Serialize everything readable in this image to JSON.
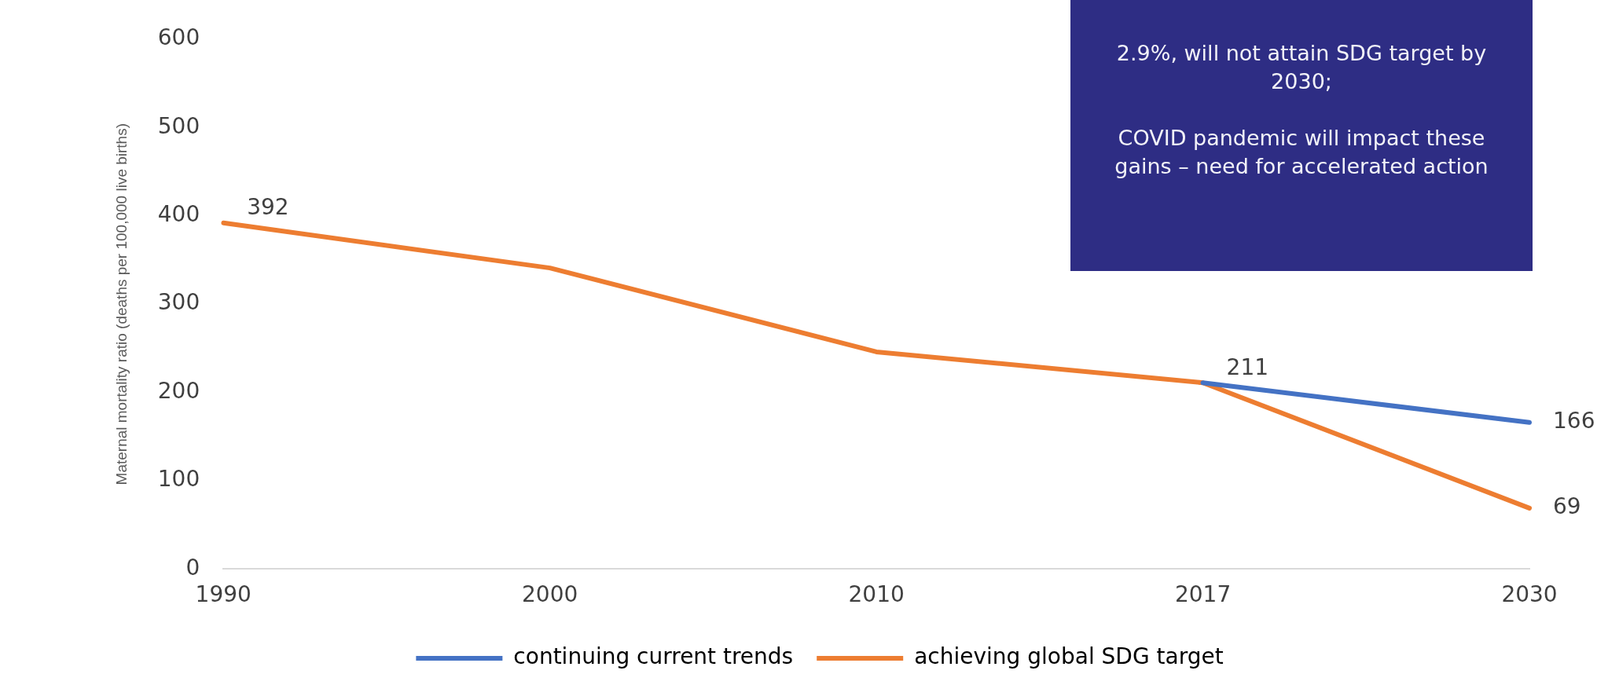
{
  "chart_data": {
    "type": "line",
    "ylabel": "Maternal mortality ratio (deaths per 100,000 live births)",
    "categories": [
      "1990",
      "2000",
      "2010",
      "2017",
      "2030"
    ],
    "series": [
      {
        "name": "continuing current trends",
        "color": "#4472c4",
        "values": [
          null,
          null,
          null,
          211,
          166
        ],
        "value_labels": [
          null,
          null,
          null,
          "211",
          "166"
        ]
      },
      {
        "name": "achieving global SDG target",
        "color": "#ed7d31",
        "values": [
          392,
          341,
          246,
          211,
          69
        ],
        "value_labels": [
          "392",
          null,
          null,
          null,
          "69"
        ]
      }
    ],
    "ylim": [
      0,
      600
    ],
    "yticks": [
      0,
      100,
      200,
      300,
      400,
      500,
      600
    ],
    "grid": false,
    "legend": "bottom",
    "marker": "none",
    "line_style": "solid",
    "annotations": [
      "2.9%, will not attain SDG target by 2030;\n\nCOVID pandemic will impact these gains – need for accelerated action"
    ]
  }
}
